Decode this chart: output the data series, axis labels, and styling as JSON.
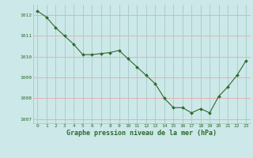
{
  "x": [
    0,
    1,
    2,
    3,
    4,
    5,
    6,
    7,
    8,
    9,
    10,
    11,
    12,
    13,
    14,
    15,
    16,
    17,
    18,
    19,
    20,
    21,
    22,
    23
  ],
  "y": [
    1012.2,
    1011.9,
    1011.4,
    1011.0,
    1010.6,
    1010.1,
    1010.1,
    1010.15,
    1010.2,
    1010.3,
    1009.9,
    1009.5,
    1009.1,
    1008.7,
    1008.0,
    1007.55,
    1007.55,
    1007.3,
    1007.5,
    1007.3,
    1008.1,
    1008.55,
    1009.1,
    1009.8
  ],
  "line_color": "#2d6a2d",
  "marker_color": "#2d6a2d",
  "bg_color": "#cce8e8",
  "grid_color_h": "#e8a8a8",
  "grid_color_v": "#a8c8c8",
  "xlabel": "Graphe pression niveau de la mer (hPa)",
  "xlabel_color": "#2d6a2d",
  "tick_color": "#2d6a2d",
  "ylim": [
    1006.8,
    1012.5
  ],
  "yticks": [
    1007,
    1008,
    1009,
    1010,
    1011,
    1012
  ],
  "xticks": [
    0,
    1,
    2,
    3,
    4,
    5,
    6,
    7,
    8,
    9,
    10,
    11,
    12,
    13,
    14,
    15,
    16,
    17,
    18,
    19,
    20,
    21,
    22,
    23
  ],
  "figsize": [
    3.2,
    2.0
  ],
  "dpi": 100
}
